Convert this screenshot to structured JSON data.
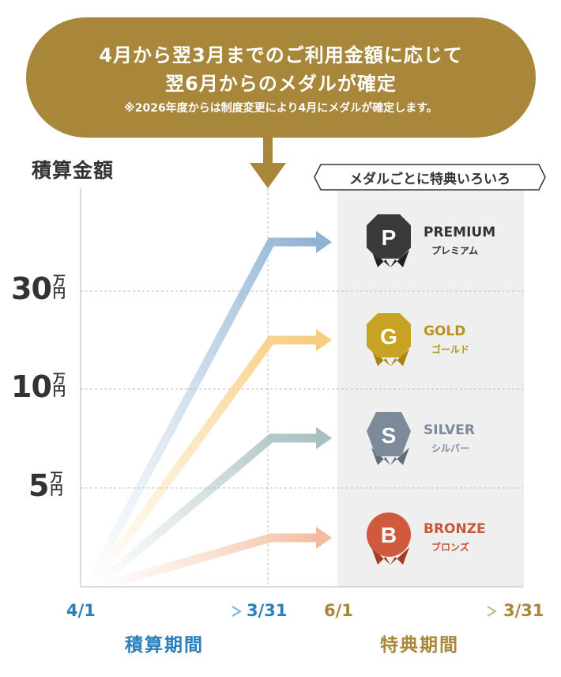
{
  "header": {
    "line1": "4月から翌3月までのご利用金額に応じて",
    "line2": "翌6月からのメダルが確定",
    "note": "※2026年度からは制度変更により4月にメダルが確定します。"
  },
  "y_axis_label": "積算金額",
  "thresholds": [
    {
      "value": "30",
      "unit": "万円"
    },
    {
      "value": "10",
      "unit": "万円"
    },
    {
      "value": "5",
      "unit": "万円"
    }
  ],
  "banner": "メダルごとに特典いろいろ",
  "medals": [
    {
      "letter": "P",
      "name": "PREMIUM",
      "kana": "プレミアム",
      "color": "#3a3a3a",
      "name_color": "#333333"
    },
    {
      "letter": "G",
      "name": "GOLD",
      "kana": "ゴールド",
      "color": "#c8a222",
      "name_color": "#b8941c"
    },
    {
      "letter": "S",
      "name": "SILVER",
      "kana": "シルバー",
      "color": "#7d8a99",
      "name_color": "#7d8a99"
    },
    {
      "letter": "B",
      "name": "BRONZE",
      "kana": "ブロンズ",
      "color": "#d05a3e",
      "name_color": "#c8563a"
    }
  ],
  "timeline": {
    "accumulation": {
      "start": "4/1",
      "end": "3/31",
      "label": "積算期間",
      "color": "#2a7fb8"
    },
    "benefit": {
      "start": "6/1",
      "end": "3/31",
      "label": "特典期間",
      "color": "#a8863a"
    }
  }
}
